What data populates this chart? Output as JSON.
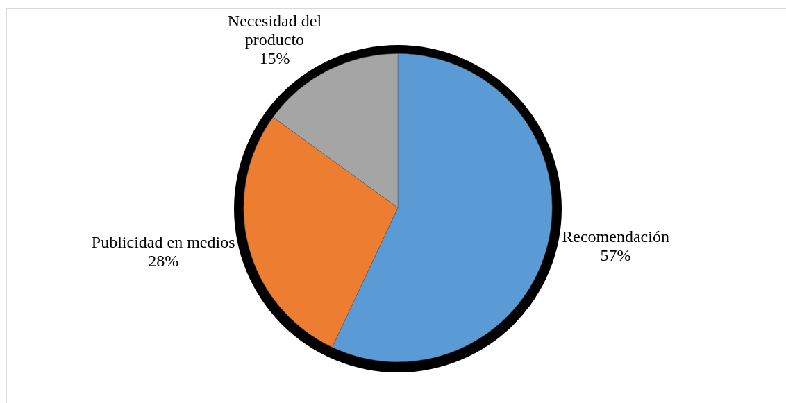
{
  "chart_data": {
    "type": "pie",
    "categories": [
      "Recomendación",
      "Publicidad en medios",
      "Necesidad del producto"
    ],
    "values": [
      57,
      28,
      15
    ],
    "colors": [
      "#5b9bd5",
      "#ed7d31",
      "#a5a5a5"
    ],
    "value_labels": [
      "57%",
      "28%",
      "15%"
    ]
  }
}
